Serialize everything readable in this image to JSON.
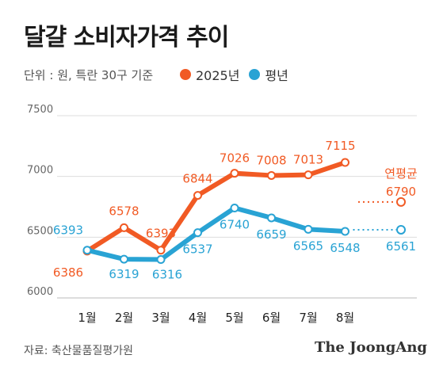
{
  "header": {
    "title": "달걀 소비자가격 추이",
    "subtitle": "단위 : 원, 특란 30구 기준"
  },
  "footer": {
    "source": "자료: 축산물품질평가원",
    "brand": "The JoongAng"
  },
  "colors": {
    "series_2025": "#f15a24",
    "series_avg": "#29a3d4"
  },
  "chart_data": {
    "type": "line",
    "title": "달걀 소비자가격 추이",
    "categories": [
      "1월",
      "2월",
      "3월",
      "4월",
      "5월",
      "6월",
      "7월",
      "8월"
    ],
    "ylim": [
      6000,
      7500
    ],
    "yticks": [
      "6000",
      "6500",
      "7000",
      "7500"
    ],
    "grid": true,
    "legend_position": "top",
    "series": [
      {
        "name": "2025년",
        "color": "#f15a24",
        "values": [
          6386,
          6578,
          6393,
          6844,
          7026,
          7008,
          7013,
          7115
        ],
        "labels": [
          "6386",
          "6578",
          "6393",
          "6844",
          "7026",
          "7008",
          "7013",
          "7115"
        ]
      },
      {
        "name": "평년",
        "color": "#29a3d4",
        "values": [
          6393,
          6319,
          6316,
          6537,
          6740,
          6659,
          6565,
          6548
        ],
        "labels": [
          "6393",
          "6319",
          "6316",
          "6537",
          "6740",
          "6659",
          "6565",
          "6548"
        ]
      }
    ],
    "annual_average": {
      "label": "연평균",
      "series_2025": {
        "value": 6790,
        "label": "6790"
      },
      "series_avg": {
        "value": 6561,
        "label": "6561"
      }
    }
  }
}
